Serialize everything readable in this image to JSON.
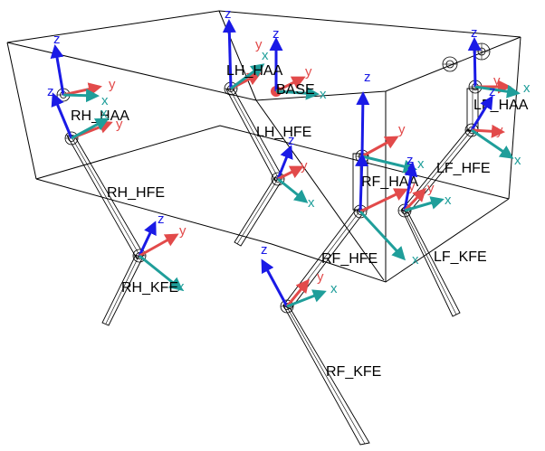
{
  "colors": {
    "x_axis": "#1f9e9a",
    "y_axis": "#e24a4a",
    "z_axis": "#1a1ae6",
    "base_marker": "#e64a4a",
    "wire": "#000000"
  },
  "axis_labels": {
    "x": "x",
    "y": "y",
    "z": "z"
  },
  "frames": [
    {
      "id": "base",
      "label": "BASE"
    },
    {
      "id": "lh_haa",
      "label": "LH_HAA"
    },
    {
      "id": "lh_hfe",
      "label": "LH_HFE"
    },
    {
      "id": "rh_haa",
      "label": "RH_HAA"
    },
    {
      "id": "rh_hfe",
      "label": "RH_HFE"
    },
    {
      "id": "rh_kfe",
      "label": "RH_KFE"
    },
    {
      "id": "rf_kfe_upper",
      "label": "RF_KFE"
    },
    {
      "id": "rf_haa",
      "label": "RF_HAA"
    },
    {
      "id": "rf_hfe",
      "label": "RF_HFE"
    },
    {
      "id": "rf_kfe",
      "label": "RF_KFE"
    },
    {
      "id": "lf_haa",
      "label": "LF_HAA"
    },
    {
      "id": "lf_hfe",
      "label": "LF_HFE"
    },
    {
      "id": "lf_kfe",
      "label": "LF_KFE"
    }
  ]
}
